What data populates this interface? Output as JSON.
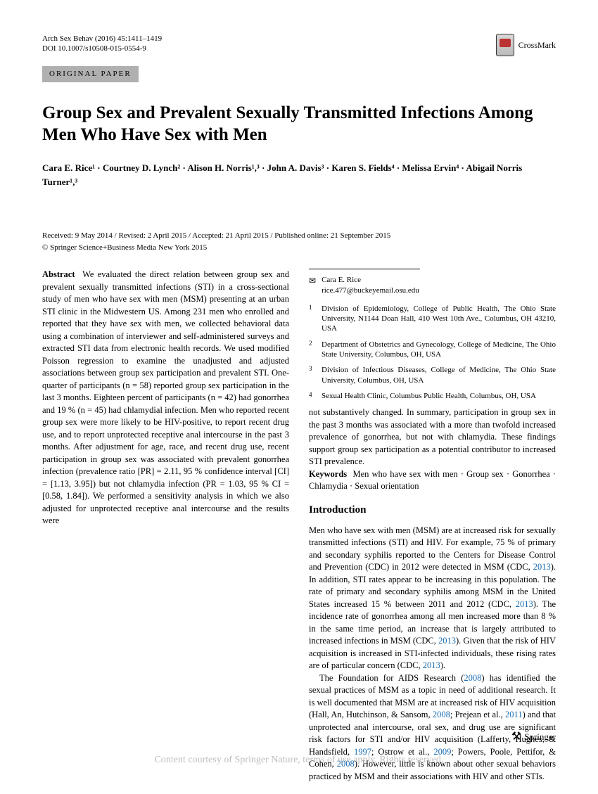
{
  "header": {
    "journal_line": "Arch Sex Behav (2016) 45:1411–1419",
    "doi_line": "DOI 10.1007/s10508-015-0554-9",
    "crossmark_label": "CrossMark"
  },
  "category": "ORIGINAL PAPER",
  "title": "Group Sex and Prevalent Sexually Transmitted Infections Among Men Who Have Sex with Men",
  "authors_html": "Cara E. Rice¹ · Courtney D. Lynch² · Alison H. Norris¹,³ · John A. Davis³ · Karen S. Fields⁴ · Melissa Ervin⁴ · Abigail Norris Turner¹,³",
  "dates": "Received: 9 May 2014 / Revised: 2 April 2015 / Accepted: 21 April 2015 / Published online: 21 September 2015",
  "copyright": "© Springer Science+Business Media New York 2015",
  "abstract": {
    "label": "Abstract",
    "text": "We evaluated the direct relation between group sex and prevalent sexually transmitted infections (STI) in a cross-sectional study of men who have sex with men (MSM) presenting at an urban STI clinic in the Midwestern US. Among 231 men who enrolled and reported that they have sex with men, we collected behavioral data using a combination of interviewer and self-administered surveys and extracted STI data from electronic health records. We used modified Poisson regression to examine the unadjusted and adjusted associations between group sex participation and prevalent STI. One-quarter of participants (n = 58) reported group sex participation in the last 3 months. Eighteen percent of participants (n = 42) had gonorrhea and 19 % (n = 45) had chlamydial infection. Men who reported recent group sex were more likely to be HIV-positive, to report recent drug use, and to report unprotected receptive anal intercourse in the past 3 months. After adjustment for age, race, and recent drug use, recent participation in group sex was associated with prevalent gonorrhea infection (prevalence ratio [PR] = 2.11, 95 % confidence interval [CI] = [1.13, 3.95]) but not chlamydia infection (PR = 1.03, 95 % CI = [0.58, 1.84]). We performed a sensitivity analysis in which we also adjusted for unprotected receptive anal intercourse and the results were"
  },
  "col2_continuation": "not substantively changed. In summary, participation in group sex in the past 3 months was associated with a more than twofold increased prevalence of gonorrhea, but not with chlamydia. These findings support group sex participation as a potential contributor to increased STI prevalence.",
  "keywords": {
    "label": "Keywords",
    "text": "Men who have sex with men · Group sex · Gonorrhea · Chlamydia · Sexual orientation"
  },
  "introduction": {
    "heading": "Introduction",
    "p1_a": "Men who have sex with men (MSM) are at increased risk for sexually transmitted infections (STI) and HIV. For example, 75 % of primary and secondary syphilis reported to the Centers for Disease Control and Prevention (CDC) in 2012 were detected in MSM (CDC, ",
    "p1_link1": "2013",
    "p1_b": "). In addition, STI rates appear to be increasing in this population. The rate of primary and secondary syphilis among MSM in the United States increased 15 % between 2011 and 2012 (CDC, ",
    "p1_link2": "2013",
    "p1_c": "). The incidence rate of gonorrhea among all men increased more than 8 % in the same time period, an increase that is largely attributed to increased infections in MSM (CDC, ",
    "p1_link3": "2013",
    "p1_d": "). Given that the risk of HIV acquisition is increased in STI-infected individuals, these rising rates are of particular concern (CDC, ",
    "p1_link4": "2013",
    "p1_e": ").",
    "p2_a": "The Foundation for AIDS Research (",
    "p2_link1": "2008",
    "p2_b": ") has identified the sexual practices of MSM as a topic in need of additional research. It is well documented that MSM are at increased risk of HIV acquisition (Hall, An, Hutchinson, & Sansom, ",
    "p2_link2": "2008",
    "p2_c": "; Prejean et al., ",
    "p2_link3": "2011",
    "p2_d": ") and that unprotected anal intercourse, oral sex, and drug use are significant risk factors for STI and/or HIV acquisition (Lafferty, Hughes, & Handsfield, ",
    "p2_link4": "1997",
    "p2_e": "; Ostrow et al., ",
    "p2_link5": "2009",
    "p2_f": "; Powers, Poole, Pettifor, & Cohen, ",
    "p2_link6": "2008",
    "p2_g": "). However, little is known about other sexual behaviors practiced by MSM and their associations with HIV and other STIs."
  },
  "correspondence": {
    "name": "Cara E. Rice",
    "email": "rice.477@buckeyemail.osu.edu"
  },
  "affiliations": [
    {
      "num": "1",
      "text": "Division of Epidemiology, College of Public Health, The Ohio State University, N1144 Doan Hall, 410 West 10th Ave., Columbus, OH 43210, USA"
    },
    {
      "num": "2",
      "text": "Department of Obstetrics and Gynecology, College of Medicine, The Ohio State University, Columbus, OH, USA"
    },
    {
      "num": "3",
      "text": "Division of Infectious Diseases, College of Medicine, The Ohio State University, Columbus, OH, USA"
    },
    {
      "num": "4",
      "text": "Sexual Health Clinic, Columbus Public Health, Columbus, OH, USA"
    }
  ],
  "publisher_logo": "Springer",
  "watermark": "Content courtesy of Springer Nature, terms of use apply. Rights reserved."
}
